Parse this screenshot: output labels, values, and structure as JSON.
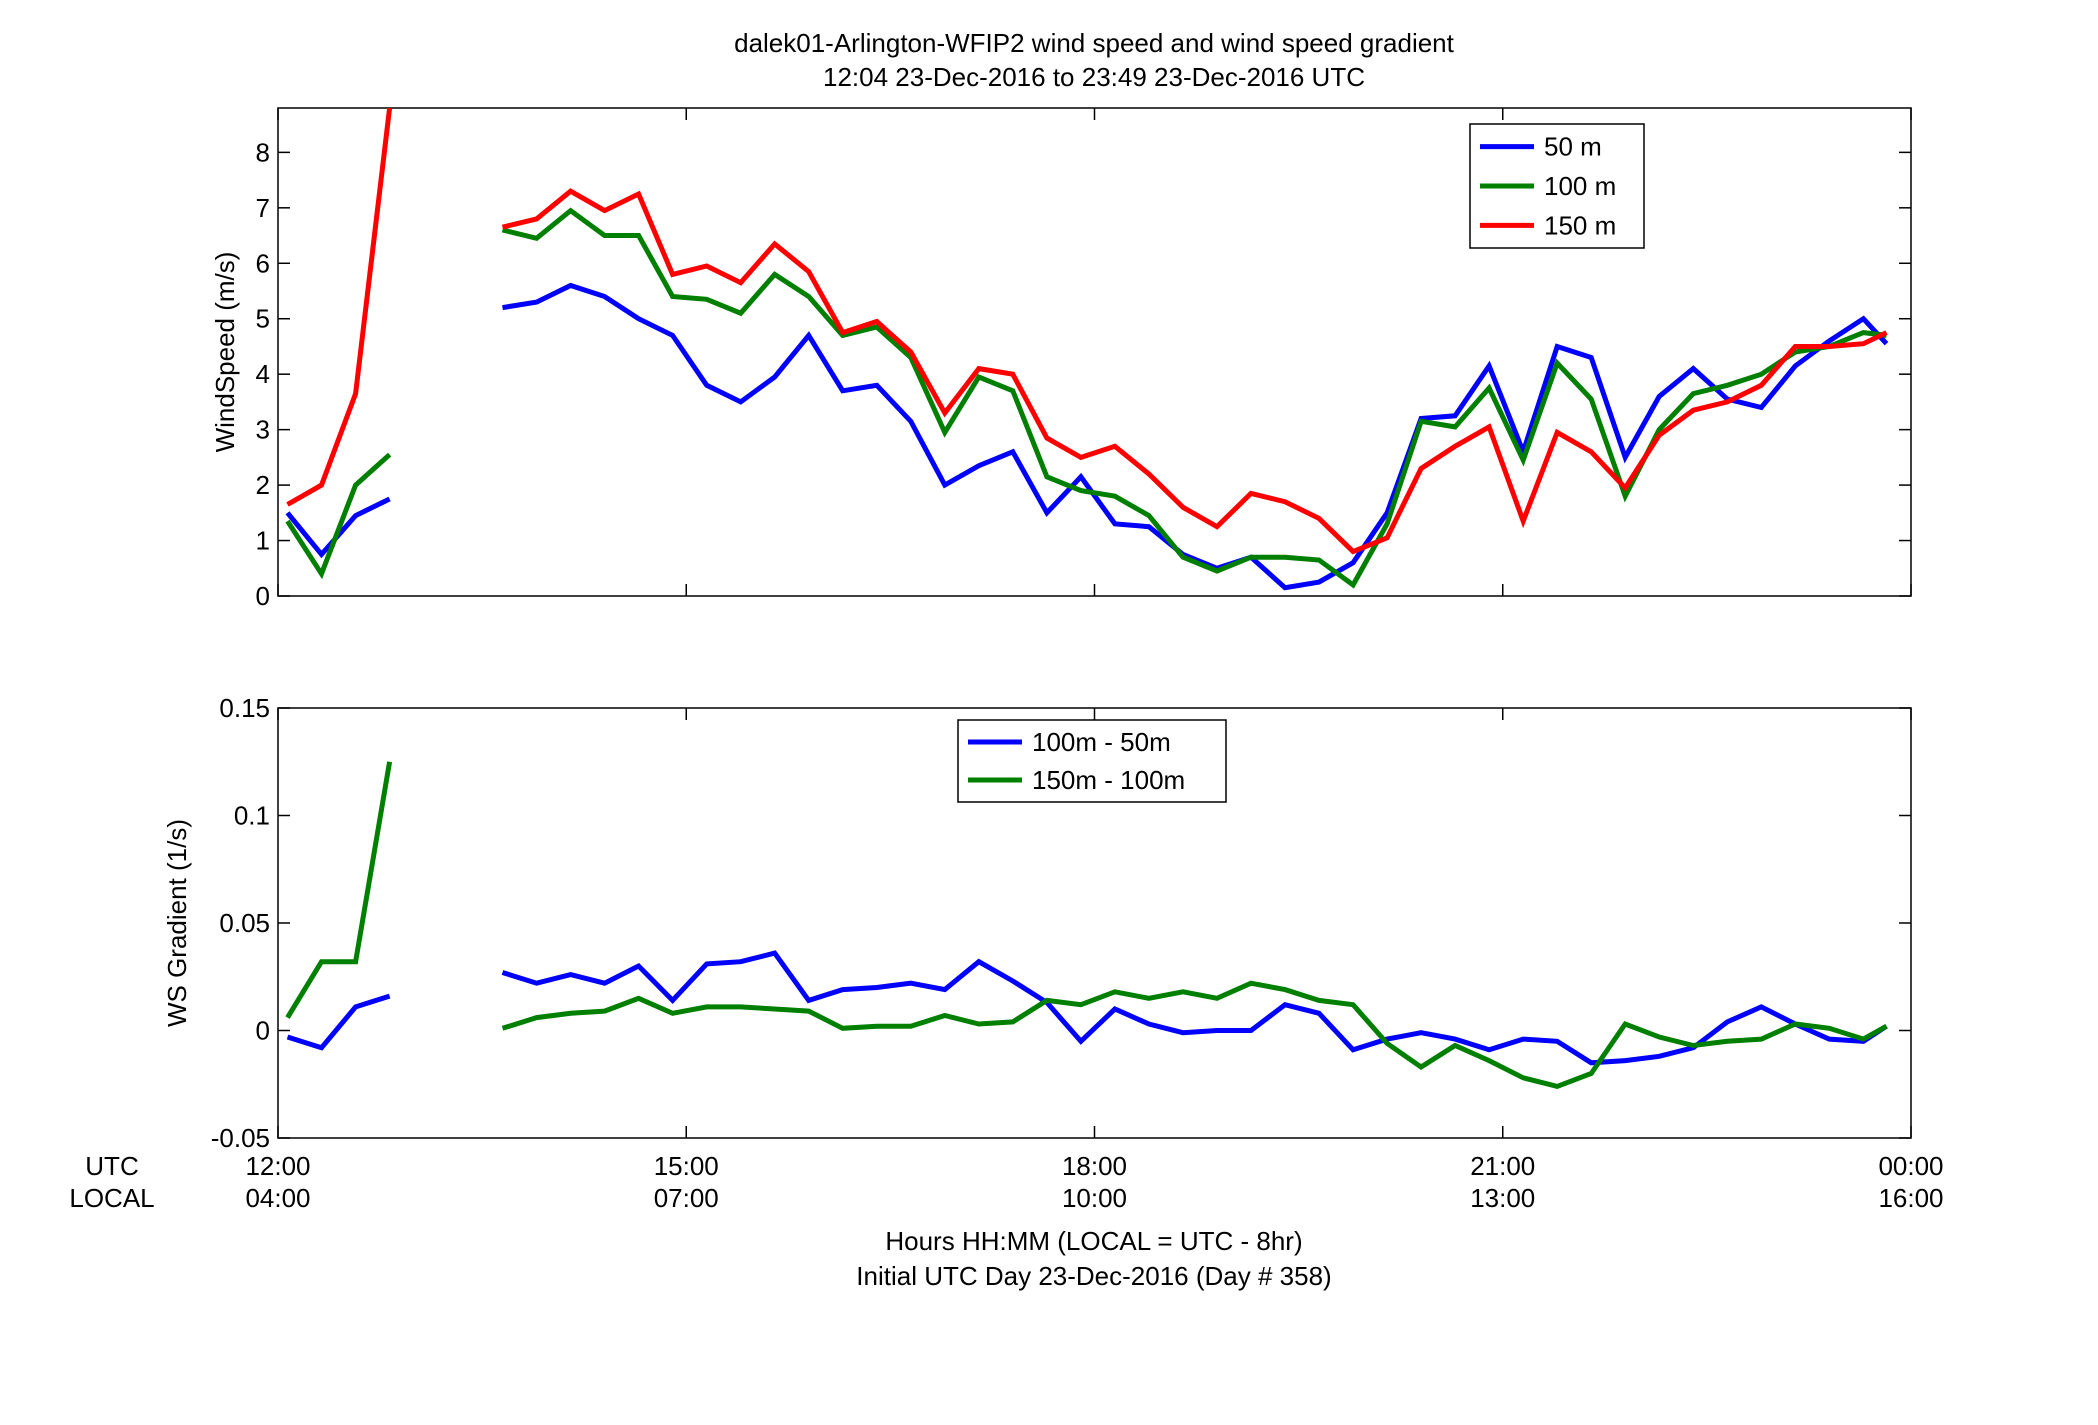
{
  "figure": {
    "title_line1": "dalek01-Arlington-WFIP2  wind speed and wind speed gradient",
    "title_line2": "12:04 23-Dec-2016 to 23:49 23-Dec-2016  UTC",
    "xlabel_line1": "Hours HH:MM  (LOCAL = UTC - 8hr)",
    "xlabel_line2": "Initial UTC Day 23-Dec-2016 (Day # 358)",
    "row_label_utc": "UTC",
    "row_label_local": "LOCAL",
    "x_ticks_utc": [
      "12:00",
      "15:00",
      "18:00",
      "21:00",
      "00:00"
    ],
    "x_ticks_local": [
      "04:00",
      "07:00",
      "10:00",
      "13:00",
      "16:00"
    ]
  },
  "chart_data": [
    {
      "type": "line",
      "title": "",
      "xlabel": "",
      "ylabel": "WindSpeed (m/s)",
      "xlim": [
        12,
        24
      ],
      "ylim": [
        0,
        8.8
      ],
      "y_ticks": [
        "0",
        "1",
        "2",
        "3",
        "4",
        "5",
        "6",
        "7",
        "8"
      ],
      "legend_position": "top-right",
      "grid": false,
      "x": [
        12.07,
        12.32,
        12.57,
        12.82,
        null,
        13.65,
        13.9,
        14.15,
        14.4,
        14.65,
        14.9,
        15.15,
        15.4,
        15.65,
        15.9,
        16.15,
        16.4,
        16.65,
        16.9,
        17.15,
        17.4,
        17.65,
        17.9,
        18.15,
        18.4,
        18.65,
        18.9,
        19.15,
        19.4,
        19.65,
        19.9,
        20.15,
        20.4,
        20.65,
        20.9,
        21.15,
        21.4,
        21.65,
        21.9,
        22.15,
        22.4,
        22.65,
        22.9,
        23.15,
        23.4,
        23.65,
        23.82
      ],
      "series": [
        {
          "name": "50 m",
          "color": "#0000ff",
          "values": [
            1.5,
            0.75,
            1.45,
            1.75,
            null,
            5.2,
            5.3,
            5.6,
            5.4,
            5.0,
            4.7,
            3.8,
            3.5,
            3.95,
            4.7,
            3.7,
            3.8,
            3.15,
            2.0,
            2.35,
            2.6,
            1.5,
            2.15,
            1.3,
            1.25,
            0.75,
            0.5,
            0.7,
            0.15,
            0.25,
            0.6,
            1.5,
            3.2,
            3.25,
            4.15,
            2.6,
            4.5,
            4.3,
            2.5,
            3.6,
            4.1,
            3.55,
            3.4,
            4.15,
            4.6,
            5.0,
            4.55
          ]
        },
        {
          "name": "100 m",
          "color": "#007f00",
          "values": [
            1.35,
            0.4,
            2.0,
            2.55,
            null,
            6.6,
            6.45,
            6.95,
            6.5,
            6.5,
            5.4,
            5.35,
            5.1,
            5.8,
            5.4,
            4.7,
            4.85,
            4.3,
            2.95,
            3.95,
            3.7,
            2.15,
            1.9,
            1.8,
            1.45,
            0.7,
            0.45,
            0.7,
            0.7,
            0.65,
            0.2,
            1.3,
            3.15,
            3.05,
            3.75,
            2.45,
            4.2,
            3.55,
            1.8,
            3.0,
            3.65,
            3.8,
            4.0,
            4.4,
            4.5,
            4.75,
            4.7
          ]
        },
        {
          "name": "150 m",
          "color": "#ff0000",
          "values": [
            1.65,
            2.0,
            3.65,
            8.8,
            null,
            6.65,
            6.8,
            7.3,
            6.95,
            7.25,
            5.8,
            5.95,
            5.65,
            6.35,
            5.85,
            4.75,
            4.95,
            4.4,
            3.3,
            4.1,
            4.0,
            2.85,
            2.5,
            2.7,
            2.2,
            1.6,
            1.25,
            1.85,
            1.7,
            1.4,
            0.8,
            1.05,
            2.3,
            2.7,
            3.05,
            1.35,
            2.95,
            2.6,
            1.95,
            2.9,
            3.35,
            3.5,
            3.8,
            4.5,
            4.5,
            4.55,
            4.75
          ]
        }
      ]
    },
    {
      "type": "line",
      "title": "",
      "xlabel": "",
      "ylabel": "WS Gradient (1/s)",
      "xlim": [
        12,
        24
      ],
      "ylim": [
        -0.05,
        0.15
      ],
      "y_ticks": [
        "-0.05",
        "0",
        "0.05",
        "0.1",
        "0.15"
      ],
      "legend_position": "top-center",
      "grid": false,
      "x": [
        12.07,
        12.32,
        12.57,
        12.82,
        null,
        13.65,
        13.9,
        14.15,
        14.4,
        14.65,
        14.9,
        15.15,
        15.4,
        15.65,
        15.9,
        16.15,
        16.4,
        16.65,
        16.9,
        17.15,
        17.4,
        17.65,
        17.9,
        18.15,
        18.4,
        18.65,
        18.9,
        19.15,
        19.4,
        19.65,
        19.9,
        20.15,
        20.4,
        20.65,
        20.9,
        21.15,
        21.4,
        21.65,
        21.9,
        22.15,
        22.4,
        22.65,
        22.9,
        23.15,
        23.4,
        23.65,
        23.82
      ],
      "series": [
        {
          "name": "100m - 50m",
          "color": "#0000ff",
          "values": [
            -0.003,
            -0.008,
            0.011,
            0.016,
            null,
            0.027,
            0.022,
            0.026,
            0.022,
            0.03,
            0.014,
            0.031,
            0.032,
            0.036,
            0.014,
            0.019,
            0.02,
            0.022,
            0.019,
            0.032,
            0.023,
            0.013,
            -0.005,
            0.01,
            0.003,
            -0.001,
            0.0,
            0.0,
            0.012,
            0.008,
            -0.009,
            -0.004,
            -0.001,
            -0.004,
            -0.009,
            -0.004,
            -0.005,
            -0.015,
            -0.014,
            -0.012,
            -0.008,
            0.004,
            0.011,
            0.003,
            -0.004,
            -0.005,
            0.002
          ]
        },
        {
          "name": "150m - 100m",
          "color": "#007f00",
          "values": [
            0.006,
            0.032,
            0.032,
            0.125,
            null,
            0.001,
            0.006,
            0.008,
            0.009,
            0.015,
            0.008,
            0.011,
            0.011,
            0.01,
            0.009,
            0.001,
            0.002,
            0.002,
            0.007,
            0.003,
            0.004,
            0.014,
            0.012,
            0.018,
            0.015,
            0.018,
            0.015,
            0.022,
            0.019,
            0.014,
            0.012,
            -0.006,
            -0.017,
            -0.007,
            -0.014,
            -0.022,
            -0.026,
            -0.02,
            0.003,
            -0.003,
            -0.007,
            -0.005,
            -0.004,
            0.003,
            0.001,
            -0.004,
            0.002
          ]
        }
      ]
    }
  ]
}
